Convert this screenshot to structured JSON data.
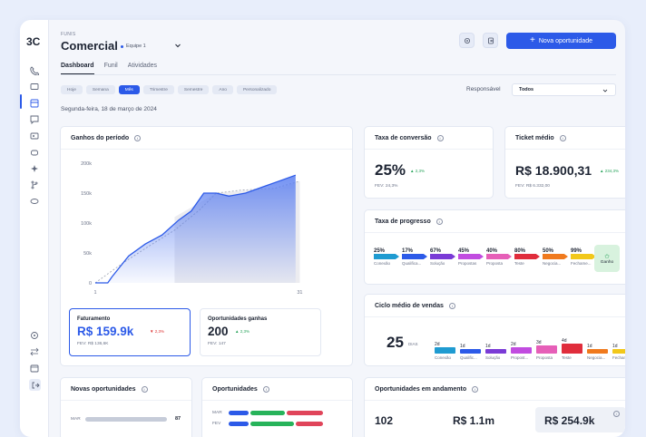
{
  "app": {
    "logo": "3C"
  },
  "header": {
    "breadcrumb": "FUNIS",
    "title": "Comercial",
    "team": "Equipe 1",
    "new_opportunity": "Nova oportunidade"
  },
  "tabs": [
    {
      "label": "Dashboard"
    },
    {
      "label": "Funil"
    },
    {
      "label": "Atividades"
    }
  ],
  "filters": [
    "Hoje",
    "Semana",
    "Mês",
    "Trimestre",
    "Semestre",
    "Ano",
    "Personalizado"
  ],
  "active_filter": "Mês",
  "responsible": {
    "label": "Responsável",
    "value": "Todos"
  },
  "date": "Segunda-feira, 18 de março de 2024",
  "gains": {
    "title": "Ganhos do período",
    "chart_data": {
      "type": "area",
      "title": "Ganhos do período",
      "x": [
        1,
        31
      ],
      "y_ticks": [
        "200k",
        "150k",
        "100k",
        "50k",
        "0"
      ],
      "ylim": [
        0,
        200000
      ],
      "series": [
        {
          "values": [
            [
              1,
              0
            ],
            [
              4,
              0
            ],
            [
              5,
              10000
            ],
            [
              9,
              45000
            ],
            [
              13,
              65000
            ],
            [
              17,
              80000
            ],
            [
              21,
              105000
            ],
            [
              24,
              120000
            ],
            [
              27,
              150000
            ],
            [
              30,
              150000
            ],
            [
              33,
              145000
            ],
            [
              37,
              150000
            ],
            [
              41,
              160000
            ],
            [
              45,
              170000
            ],
            [
              49,
              180000
            ]
          ]
        }
      ]
    }
  },
  "revenue": {
    "label": "Faturamento",
    "value": "R$ 159.9k",
    "delta": "2,3%",
    "prev": "FEV: R$ 136,6K"
  },
  "won": {
    "label": "Oportunidades ganhas",
    "value": "200",
    "delta": "2,3%",
    "prev": "FEV: 147"
  },
  "conversion": {
    "title": "Taxa de conversão",
    "value": "25%",
    "delta": "2,3%",
    "prev": "FEV: 24,3%"
  },
  "ticket": {
    "title": "Ticket médio",
    "value": "R$ 18.900,31",
    "delta": "234,3%",
    "prev": "FEV: R$ 6.332,00"
  },
  "progress": {
    "title": "Taxa de progresso",
    "steps": [
      {
        "pct": "25%",
        "label": "Conexão",
        "color": "#1f9bd1"
      },
      {
        "pct": "17%",
        "label": "Qualifica...",
        "color": "#2c5ae8"
      },
      {
        "pct": "67%",
        "label": "Solução",
        "color": "#7a3bd6"
      },
      {
        "pct": "45%",
        "label": "Propostas",
        "color": "#c14ce0"
      },
      {
        "pct": "40%",
        "label": "Proposta",
        "color": "#e65fb8"
      },
      {
        "pct": "80%",
        "label": "Teste",
        "color": "#e02d3c"
      },
      {
        "pct": "50%",
        "label": "Negocia...",
        "color": "#f07a1e"
      },
      {
        "pct": "99%",
        "label": "Fechame...",
        "color": "#f2c81a"
      }
    ],
    "won_label": "Ganho"
  },
  "cycle": {
    "title": "Ciclo médio de vendas",
    "value": "25",
    "unit": "DIAS",
    "steps": [
      {
        "days": "2d",
        "label": "Conexão",
        "color": "#1f9bd1"
      },
      {
        "days": "1d",
        "label": "Qualific...",
        "color": "#2c5ae8"
      },
      {
        "days": "1d",
        "label": "Solução",
        "color": "#7a3bd6"
      },
      {
        "days": "2d",
        "label": "Propost...",
        "color": "#c14ce0"
      },
      {
        "days": "3d",
        "label": "Proposta",
        "color": "#e65fb8"
      },
      {
        "days": "4d",
        "label": "Teste",
        "color": "#e02d3c"
      },
      {
        "days": "1d",
        "label": "Negocia...",
        "color": "#f07a1e"
      },
      {
        "days": "1d",
        "label": "Fechame...",
        "color": "#f2c81a"
      }
    ]
  },
  "new_opps": {
    "title": "Novas oportunidades",
    "rows": [
      {
        "label": "MAR",
        "value": "87"
      }
    ]
  },
  "opps": {
    "title": "Oportunidades",
    "rows": [
      {
        "label": "MAR"
      },
      {
        "label": "FEV"
      }
    ]
  },
  "in_progress": {
    "title": "Oportunidades em andamento",
    "count": "102",
    "total": "R$ 1.1m",
    "avg": "R$ 254.9k"
  }
}
